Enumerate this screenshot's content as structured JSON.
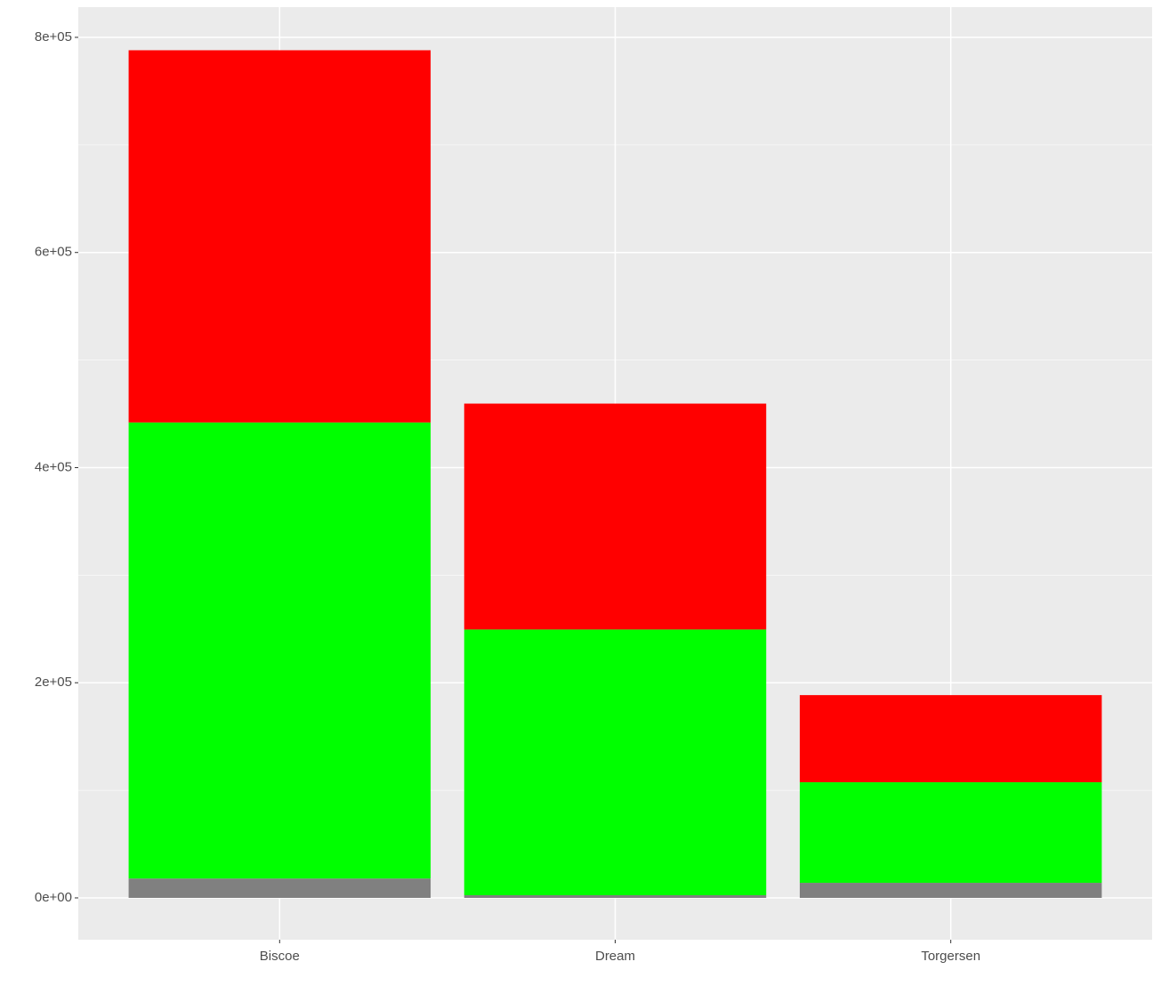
{
  "chart_data": {
    "type": "stacked_bar",
    "categories": [
      "Biscoe",
      "Dream",
      "Torgersen"
    ],
    "series": [
      {
        "color": "#808080",
        "values": [
          18000,
          2500,
          14000
        ]
      },
      {
        "color": "#00ff00",
        "values": [
          424000,
          247000,
          93500
        ]
      },
      {
        "color": "#ff0000",
        "values": [
          346000,
          210000,
          81000
        ]
      }
    ],
    "ylim": [
      -38900,
      828100
    ],
    "yticks": [
      {
        "value": 0,
        "label": "0e+00"
      },
      {
        "value": 200000,
        "label": "2e+05"
      },
      {
        "value": 400000,
        "label": "4e+05"
      },
      {
        "value": 600000,
        "label": "6e+05"
      },
      {
        "value": 800000,
        "label": "8e+05"
      }
    ],
    "minor_yticks": [
      100000,
      300000,
      500000,
      700000
    ],
    "grid": true
  }
}
